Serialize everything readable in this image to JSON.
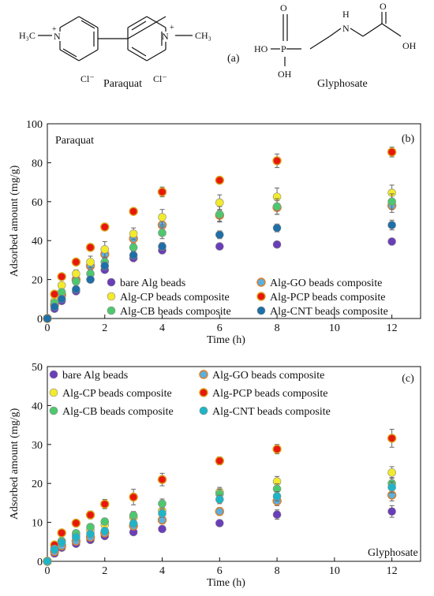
{
  "chemical_structures": {
    "panel_label": "(a)",
    "paraquat": {
      "name": "Paraquat",
      "left_methyl": "H₃C",
      "right_methyl": "CH₃",
      "n_left": "N",
      "n_right": "N",
      "charge_left": "+",
      "charge_right": "+",
      "counterion_left": "Cl⁻",
      "counterion_right": "Cl⁻"
    },
    "glyphosate": {
      "name": "Glyphosate",
      "ho_left": "HO",
      "oh_bottom": "OH",
      "oh_right": "OH",
      "p": "P",
      "o_top_p": "O",
      "nh_n": "N",
      "nh_h": "H",
      "o_top_c": "O"
    }
  },
  "chart_data": [
    {
      "type": "scatter",
      "panel_label": "(b)",
      "inset_label": "Paraquat",
      "xlabel": "Time (h)",
      "ylabel": "Adsorbed amount (mg/g)",
      "xlim": [
        0,
        13
      ],
      "ylim": [
        0,
        100
      ],
      "xticks": [
        "0",
        "2",
        "4",
        "6",
        "8",
        "10",
        "12"
      ],
      "yticks": [
        "0",
        "20",
        "40",
        "60",
        "80",
        "100"
      ],
      "x": [
        0,
        0.25,
        0.5,
        1,
        1.5,
        2,
        3,
        4,
        6,
        8,
        12
      ],
      "legend_placement": "bottom",
      "series": [
        {
          "name": "bare Alg beads",
          "color": "#6a3eb8",
          "values": [
            0,
            5,
            9,
            14,
            20,
            25,
            31,
            35,
            37,
            38,
            39.5
          ],
          "err": [
            0,
            0,
            0,
            0,
            0,
            0,
            0,
            0,
            0,
            0,
            0
          ]
        },
        {
          "name": "Alg-GO beads composite",
          "color": "#5bb0e0",
          "edge": "#e07b20",
          "values": [
            0,
            7,
            12,
            20,
            27,
            33,
            41,
            48,
            53,
            57,
            58
          ],
          "err": [
            0,
            1,
            1,
            1.5,
            2,
            2,
            2.5,
            2.5,
            3,
            3.5,
            3.5
          ]
        },
        {
          "name": "Alg-CP beads composite",
          "color": "#f2ea2c",
          "values": [
            0,
            9,
            17,
            23,
            29,
            35.5,
            43.5,
            52,
            59.5,
            62.5,
            64.5
          ],
          "err": [
            0,
            1,
            1.5,
            2,
            3,
            4,
            3,
            4,
            4,
            4.5,
            4
          ]
        },
        {
          "name": "Alg-PCP beads composite",
          "color": "#e8160c",
          "edge": "#d8a01a",
          "values": [
            0,
            12.5,
            21.5,
            29,
            36.5,
            47,
            55,
            65,
            71,
            81,
            85.5
          ],
          "err": [
            0,
            1,
            1,
            1,
            1.5,
            1.5,
            1.5,
            2.5,
            0,
            3.5,
            2.5
          ]
        },
        {
          "name": "Alg-CB beads composite",
          "color": "#4ec86e",
          "values": [
            0,
            8,
            13.5,
            19,
            23,
            29,
            36.5,
            44,
            53.5,
            57.5,
            60
          ],
          "err": [
            0,
            1,
            1,
            1.5,
            2,
            2,
            2,
            3,
            4,
            4,
            4
          ]
        },
        {
          "name": "Alg-CNT beads composite",
          "color": "#1e6fa8",
          "values": [
            0,
            6,
            10,
            15,
            20,
            27,
            32.5,
            37,
            43,
            46.5,
            48
          ],
          "err": [
            0,
            1,
            1,
            1.5,
            1.5,
            2,
            2,
            2,
            2,
            2,
            2.5
          ]
        }
      ]
    },
    {
      "type": "scatter",
      "panel_label": "(c)",
      "inset_label": "Glyphosate",
      "xlabel": "Time (h)",
      "ylabel": "Adsorbed amount (mg/g)",
      "xlim": [
        0,
        13
      ],
      "ylim": [
        0,
        50
      ],
      "xticks": [
        "0",
        "2",
        "4",
        "6",
        "8",
        "10",
        "12"
      ],
      "yticks": [
        "0",
        "10",
        "20",
        "30",
        "40",
        "50"
      ],
      "x": [
        0,
        0.25,
        0.5,
        1,
        1.5,
        2,
        3,
        4,
        6,
        8,
        12
      ],
      "legend_placement": "top-left",
      "series": [
        {
          "name": "bare Alg beads",
          "color": "#6a3eb8",
          "values": [
            0,
            2,
            3.5,
            4.5,
            5.5,
            6.5,
            7.5,
            8.3,
            9.8,
            12,
            12.8
          ],
          "err": [
            0,
            0.3,
            0.4,
            0.5,
            0.5,
            0.6,
            0.7,
            0.8,
            0.8,
            1.2,
            1.5
          ]
        },
        {
          "name": "Alg-GO beads composite",
          "color": "#5bb0e0",
          "edge": "#e07b20",
          "values": [
            0,
            2.5,
            4,
            5.2,
            6.2,
            7.3,
            9.1,
            10.6,
            12.8,
            15.5,
            17
          ],
          "err": [
            0,
            0.4,
            0.5,
            0.5,
            0.6,
            0.7,
            0.8,
            1,
            1,
            1.2,
            1.5
          ]
        },
        {
          "name": "Alg-CP beads composite",
          "color": "#f2ea2c",
          "values": [
            0,
            3.5,
            5.2,
            6.8,
            8,
            9.4,
            11.2,
            13,
            17.8,
            20.5,
            22.8
          ],
          "err": [
            0,
            0.5,
            0.6,
            0.7,
            0.8,
            0.9,
            1,
            1.1,
            1.2,
            1.3,
            1.5
          ]
        },
        {
          "name": "Alg-PCP beads composite",
          "color": "#e8160c",
          "edge": "#d8a01a",
          "values": [
            0,
            4.2,
            7.3,
            9.8,
            11.9,
            14.7,
            16.5,
            21,
            25.8,
            28.8,
            31.6
          ],
          "err": [
            0,
            0.6,
            0.7,
            0.8,
            1,
            1.2,
            2,
            1.6,
            1,
            1.2,
            2.3
          ]
        },
        {
          "name": "Alg-CB beads composite",
          "color": "#4ec86e",
          "values": [
            0,
            3.2,
            5.2,
            7.2,
            8.8,
            10.2,
            11.8,
            14.8,
            17.3,
            18.6,
            20
          ],
          "err": [
            0,
            0.5,
            0.5,
            0.6,
            0.7,
            0.8,
            1,
            1.2,
            1.2,
            1.3,
            1.5
          ]
        },
        {
          "name": "Alg-CNT beads composite",
          "color": "#1fb5c8",
          "values": [
            0,
            3,
            4.8,
            6.2,
            7,
            7.8,
            9.7,
            12.3,
            15.9,
            16.7,
            19
          ],
          "err": [
            0,
            0.4,
            0.5,
            0.5,
            0.6,
            0.7,
            0.8,
            1,
            1.1,
            1.2,
            1.4
          ]
        }
      ]
    }
  ]
}
